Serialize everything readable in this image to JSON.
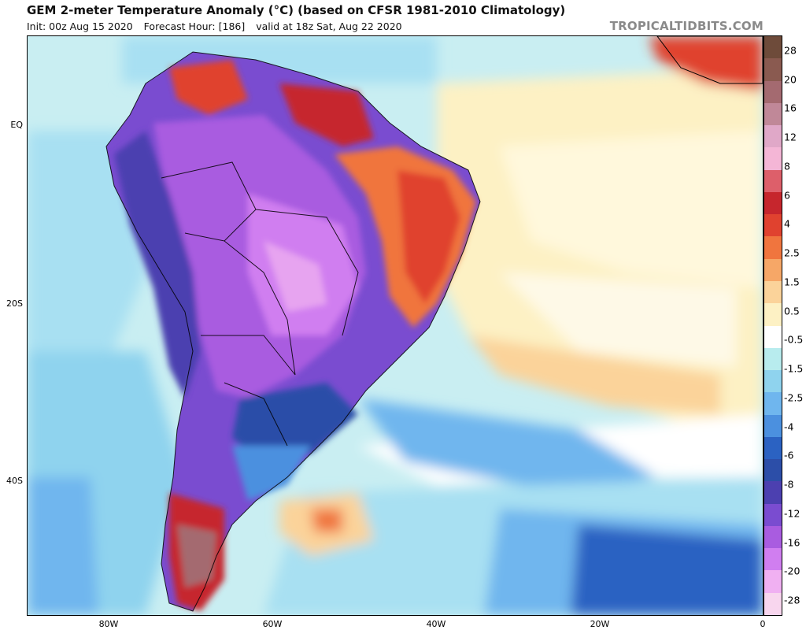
{
  "header": {
    "title": "GEM 2-meter Temperature Anomaly (°C) (based on CFSR 1981-2010 Climatology)",
    "init": "Init: 00z Aug 15 2020",
    "forecast_hour": "Forecast Hour: [186]",
    "valid": "valid at 18z Sat, Aug 22 2020",
    "watermark": "TROPICALTIDBITS.COM"
  },
  "map": {
    "lat_labels": [
      "EQ",
      "20S",
      "40S"
    ],
    "lon_labels": [
      "80W",
      "60W",
      "40W",
      "20W",
      "0"
    ]
  },
  "colorbar": {
    "labels": [
      "28",
      "20",
      "16",
      "12",
      "8",
      "6",
      "4",
      "2.5",
      "1.5",
      "0.5",
      "-0.5",
      "-1.5",
      "-2.5",
      "-4",
      "-6",
      "-8",
      "-12",
      "-16",
      "-20",
      "-28"
    ],
    "colors": [
      "#6e4b3a",
      "#8a5a50",
      "#a46a70",
      "#c08898",
      "#e0a8c8",
      "#f4b6d6",
      "#dd5f6a",
      "#c6262d",
      "#e0422f",
      "#f0753e",
      "#f6a767",
      "#fbd39a",
      "#fdf1c4",
      "#ffffff",
      "#b8ecee",
      "#8fd3ee",
      "#6fb6ee",
      "#4b90df",
      "#2b62c2",
      "#2c4ea8",
      "#4c40b0",
      "#7a4cd0",
      "#a95ce0",
      "#d07ef0",
      "#f0b0f2",
      "#f8d6ee"
    ]
  }
}
